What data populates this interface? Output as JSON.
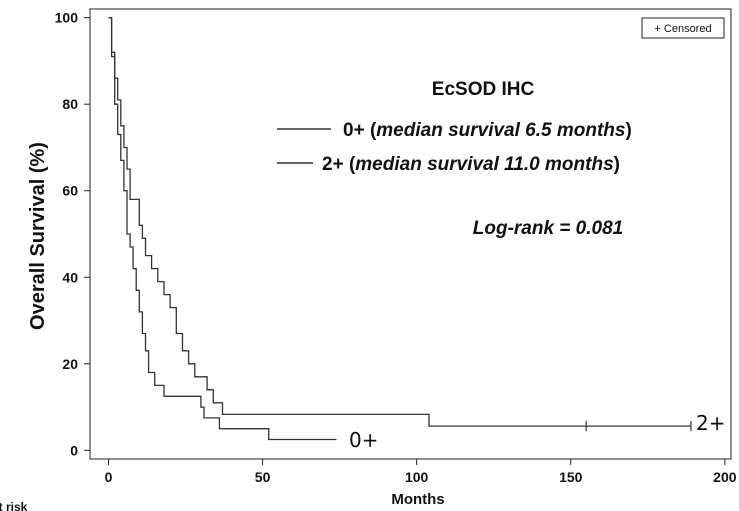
{
  "chart_data": {
    "type": "line",
    "subtype": "kaplan-meier",
    "title": "",
    "xlabel": "Months",
    "ylabel": "Overall Survival (%)",
    "xlim": [
      -6,
      202
    ],
    "ylim": [
      -2,
      102
    ],
    "xticks": [
      "0",
      "50",
      "100",
      "150",
      "200"
    ],
    "yticks": [
      "0",
      "20",
      "40",
      "60",
      "80",
      "100"
    ],
    "legend": {
      "title": "EcSOD IHC",
      "placement": "upper-right",
      "entries": [
        {
          "prefix": "0+ (",
          "italic": "median survival 6.5 months",
          "suffix": ")"
        },
        {
          "prefix": "2+ (",
          "italic": "median survival 11.0 months",
          "suffix": ")"
        }
      ]
    },
    "censored_label": "+ Censored",
    "annotation": "Log-rank = 0.081",
    "risk_table_label": "at risk",
    "series": [
      {
        "end_label": "0+",
        "color": "#333333",
        "steps": [
          [
            0,
            100
          ],
          [
            1,
            92
          ],
          [
            2,
            80
          ],
          [
            3,
            73
          ],
          [
            4,
            67
          ],
          [
            5,
            60
          ],
          [
            6,
            50
          ],
          [
            7,
            47
          ],
          [
            8,
            42
          ],
          [
            9,
            37
          ],
          [
            10,
            32
          ],
          [
            11,
            27
          ],
          [
            12,
            23
          ],
          [
            13,
            18
          ],
          [
            15,
            15
          ],
          [
            18,
            12.5
          ],
          [
            30,
            10
          ],
          [
            31,
            7.5
          ],
          [
            36,
            5
          ],
          [
            52,
            2.5
          ],
          [
            74,
            2.5
          ]
        ],
        "censored_x": []
      },
      {
        "end_label": "2+",
        "color": "#333333",
        "steps": [
          [
            0,
            100
          ],
          [
            1,
            91
          ],
          [
            2,
            86
          ],
          [
            3,
            81
          ],
          [
            4,
            75
          ],
          [
            5,
            70
          ],
          [
            6,
            65
          ],
          [
            7,
            58
          ],
          [
            10,
            52
          ],
          [
            11,
            49
          ],
          [
            12,
            45
          ],
          [
            14,
            42
          ],
          [
            16,
            39
          ],
          [
            18,
            36
          ],
          [
            20,
            33
          ],
          [
            22,
            27
          ],
          [
            24,
            23
          ],
          [
            26,
            20
          ],
          [
            28,
            17
          ],
          [
            32,
            14
          ],
          [
            34,
            11
          ],
          [
            37,
            8.3
          ],
          [
            104,
            5.6
          ],
          [
            189,
            5.6
          ]
        ],
        "censored_x": [
          155,
          189
        ]
      }
    ]
  }
}
